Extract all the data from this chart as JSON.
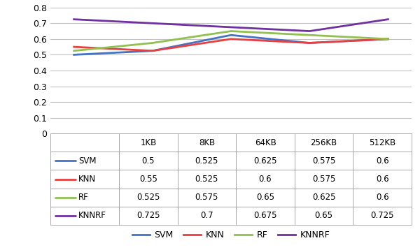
{
  "x_labels": [
    "1KB",
    "8KB",
    "64KB",
    "256KB",
    "512KB"
  ],
  "series": {
    "SVM": [
      0.5,
      0.525,
      0.625,
      0.575,
      0.6
    ],
    "KNN": [
      0.55,
      0.525,
      0.6,
      0.575,
      0.6
    ],
    "RF": [
      0.525,
      0.575,
      0.65,
      0.625,
      0.6
    ],
    "KNNRF": [
      0.725,
      0.7,
      0.675,
      0.65,
      0.725
    ]
  },
  "colors": {
    "SVM": "#4472C4",
    "KNN": "#E84040",
    "RF": "#92C050",
    "KNNRF": "#7030A0"
  },
  "ylim": [
    0,
    0.8
  ],
  "yticks": [
    0,
    0.1,
    0.2,
    0.3,
    0.4,
    0.5,
    0.6,
    0.7,
    0.8
  ],
  "table_data": {
    "SVM": [
      "0.5",
      "0.525",
      "0.625",
      "0.575",
      "0.6"
    ],
    "KNN": [
      "0.55",
      "0.525",
      "0.6",
      "0.575",
      "0.6"
    ],
    "RF": [
      "0.525",
      "0.575",
      "0.65",
      "0.625",
      "0.6"
    ],
    "KNNRF": [
      "0.725",
      "0.7",
      "0.675",
      "0.65",
      "0.725"
    ]
  },
  "legend_labels": [
    "SVM",
    "KNN",
    "RF",
    "KNNRF"
  ],
  "line_width": 2.0,
  "grid_color": "#C0C0C0",
  "table_edge_color": "#A0A0A0"
}
